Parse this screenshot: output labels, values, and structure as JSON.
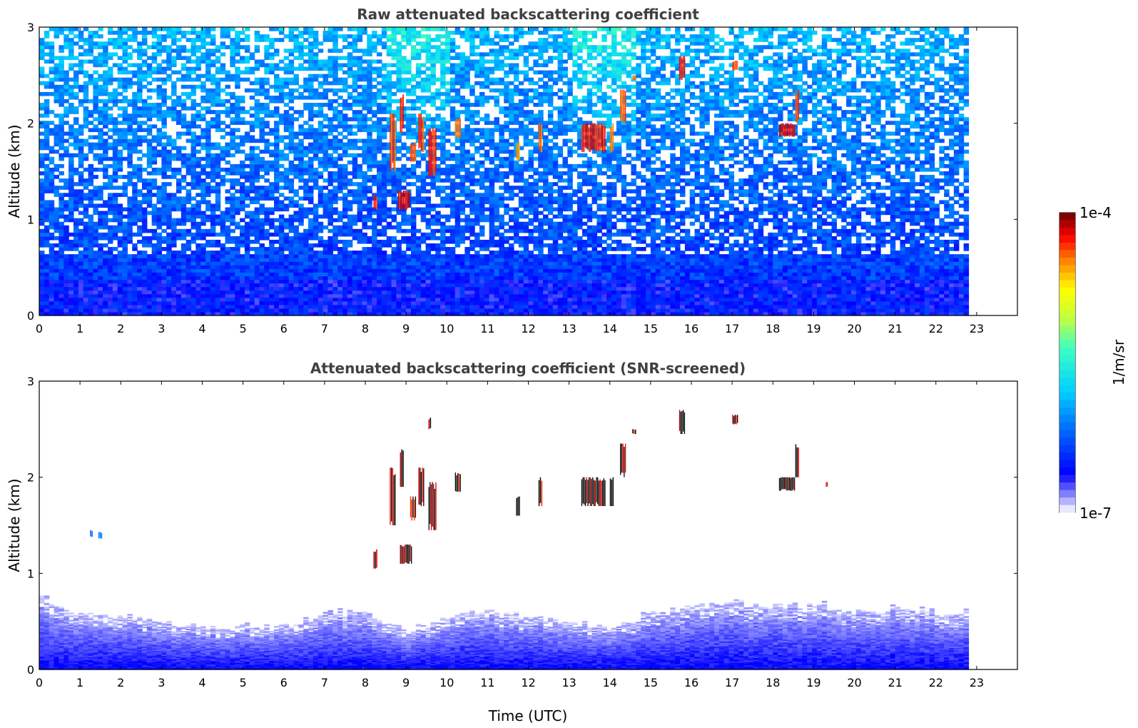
{
  "chart_data": [
    {
      "type": "heatmap",
      "title": "Raw attenuated backscattering coefficient",
      "xlabel": "",
      "ylabel": "Altitude (km)",
      "xlim": [
        0,
        24
      ],
      "ylim": [
        0,
        3
      ],
      "xticks": [
        "0",
        "1",
        "2",
        "3",
        "4",
        "5",
        "6",
        "7",
        "8",
        "9",
        "10",
        "11",
        "12",
        "13",
        "14",
        "15",
        "16",
        "17",
        "18",
        "19",
        "20",
        "21",
        "22",
        "23"
      ],
      "yticks": [
        "0",
        "1",
        "2",
        "3"
      ],
      "data_extent_x": [
        0,
        22.8
      ],
      "color_scale": "log",
      "background_layers": [
        {
          "alt_top": 0.35,
          "level": 0.18
        },
        {
          "alt_top": 0.9,
          "level": 0.24
        },
        {
          "alt_top": 1.6,
          "level": 0.28
        },
        {
          "alt_top": 3.0,
          "level": 0.34
        }
      ],
      "features": [
        {
          "t0": 8.2,
          "t1": 8.3,
          "alt0": 1.1,
          "alt1": 1.25,
          "level": 0.95
        },
        {
          "t0": 8.6,
          "t1": 8.75,
          "alt0": 1.5,
          "alt1": 2.1,
          "level": 0.92
        },
        {
          "t0": 8.8,
          "t1": 9.1,
          "alt0": 1.1,
          "alt1": 1.3,
          "level": 0.98
        },
        {
          "t0": 8.85,
          "t1": 8.95,
          "alt0": 1.9,
          "alt1": 2.3,
          "level": 0.95
        },
        {
          "t0": 9.1,
          "t1": 9.25,
          "alt0": 1.6,
          "alt1": 1.8,
          "level": 0.9
        },
        {
          "t0": 9.3,
          "t1": 9.45,
          "alt0": 1.7,
          "alt1": 2.1,
          "level": 0.93
        },
        {
          "t0": 9.55,
          "t1": 9.75,
          "alt0": 1.45,
          "alt1": 1.95,
          "level": 0.95
        },
        {
          "t0": 10.2,
          "t1": 10.35,
          "alt0": 1.85,
          "alt1": 2.05,
          "level": 0.9
        },
        {
          "t0": 11.7,
          "t1": 11.8,
          "alt0": 1.6,
          "alt1": 1.8,
          "level": 0.88
        },
        {
          "t0": 12.25,
          "t1": 12.35,
          "alt0": 1.7,
          "alt1": 2.0,
          "level": 0.9
        },
        {
          "t0": 13.3,
          "t1": 13.9,
          "alt0": 1.7,
          "alt1": 2.0,
          "level": 0.96
        },
        {
          "t0": 14.0,
          "t1": 14.1,
          "alt0": 1.7,
          "alt1": 2.0,
          "level": 0.92
        },
        {
          "t0": 14.25,
          "t1": 14.4,
          "alt0": 2.0,
          "alt1": 2.35,
          "level": 0.93
        },
        {
          "t0": 14.55,
          "t1": 14.65,
          "alt0": 2.45,
          "alt1": 2.5,
          "level": 0.9
        },
        {
          "t0": 15.7,
          "t1": 15.85,
          "alt0": 2.45,
          "alt1": 2.7,
          "level": 0.97
        },
        {
          "t0": 17.0,
          "t1": 17.15,
          "alt0": 2.55,
          "alt1": 2.65,
          "level": 0.93
        },
        {
          "t0": 18.15,
          "t1": 18.55,
          "alt0": 1.86,
          "alt1": 2.0,
          "level": 1.0
        },
        {
          "t0": 18.55,
          "t1": 18.65,
          "alt0": 2.0,
          "alt1": 2.35,
          "level": 0.93
        }
      ]
    },
    {
      "type": "heatmap",
      "title": "Attenuated backscattering coefficient (SNR-screened)",
      "xlabel": "Time (UTC)",
      "ylabel": "Altitude (km)",
      "xlim": [
        0,
        24
      ],
      "ylim": [
        0,
        3
      ],
      "xticks": [
        "0",
        "1",
        "2",
        "3",
        "4",
        "5",
        "6",
        "7",
        "8",
        "9",
        "10",
        "11",
        "12",
        "13",
        "14",
        "15",
        "16",
        "17",
        "18",
        "19",
        "20",
        "21",
        "22",
        "23"
      ],
      "yticks": [
        "0",
        "1",
        "2",
        "3"
      ],
      "data_extent_x": [
        0,
        22.8
      ],
      "color_scale": "log",
      "boundary_layer_top_km": [
        {
          "t": 0,
          "h": 0.75
        },
        {
          "t": 1,
          "h": 0.6
        },
        {
          "t": 2,
          "h": 0.55
        },
        {
          "t": 3,
          "h": 0.5
        },
        {
          "t": 4,
          "h": 0.45
        },
        {
          "t": 5,
          "h": 0.45
        },
        {
          "t": 6,
          "h": 0.45
        },
        {
          "t": 7,
          "h": 0.6
        },
        {
          "t": 8,
          "h": 0.6
        },
        {
          "t": 9,
          "h": 0.4
        },
        {
          "t": 10,
          "h": 0.55
        },
        {
          "t": 11,
          "h": 0.6
        },
        {
          "t": 12,
          "h": 0.55
        },
        {
          "t": 13,
          "h": 0.5
        },
        {
          "t": 14,
          "h": 0.45
        },
        {
          "t": 15,
          "h": 0.6
        },
        {
          "t": 16,
          "h": 0.65
        },
        {
          "t": 17,
          "h": 0.7
        },
        {
          "t": 18,
          "h": 0.65
        },
        {
          "t": 19,
          "h": 0.7
        },
        {
          "t": 20,
          "h": 0.6
        },
        {
          "t": 21,
          "h": 0.65
        },
        {
          "t": 22,
          "h": 0.6
        },
        {
          "t": 22.8,
          "h": 0.6
        }
      ],
      "features": [
        {
          "t0": 1.25,
          "t1": 1.32,
          "alt0": 1.38,
          "alt1": 1.45,
          "level": 0.3
        },
        {
          "t0": 1.45,
          "t1": 1.55,
          "alt0": 1.36,
          "alt1": 1.43,
          "level": 0.35
        },
        {
          "t0": 8.2,
          "t1": 8.3,
          "alt0": 1.05,
          "alt1": 1.25,
          "level": 0.95
        },
        {
          "t0": 8.6,
          "t1": 8.75,
          "alt0": 1.5,
          "alt1": 2.1,
          "level": 0.92
        },
        {
          "t0": 8.85,
          "t1": 9.15,
          "alt0": 1.1,
          "alt1": 1.3,
          "level": 0.98
        },
        {
          "t0": 8.85,
          "t1": 8.95,
          "alt0": 1.9,
          "alt1": 2.3,
          "level": 0.95
        },
        {
          "t0": 9.1,
          "t1": 9.25,
          "alt0": 1.55,
          "alt1": 1.8,
          "level": 0.9
        },
        {
          "t0": 9.3,
          "t1": 9.45,
          "alt0": 1.7,
          "alt1": 2.1,
          "level": 0.93
        },
        {
          "t0": 9.55,
          "t1": 9.75,
          "alt0": 1.45,
          "alt1": 1.95,
          "level": 0.95
        },
        {
          "t0": 9.55,
          "t1": 9.62,
          "alt0": 2.5,
          "alt1": 2.62,
          "level": 0.95
        },
        {
          "t0": 10.2,
          "t1": 10.35,
          "alt0": 1.85,
          "alt1": 2.05,
          "level": 0.9
        },
        {
          "t0": 11.7,
          "t1": 11.8,
          "alt0": 1.6,
          "alt1": 1.8,
          "level": 0.88
        },
        {
          "t0": 12.25,
          "t1": 12.35,
          "alt0": 1.7,
          "alt1": 2.0,
          "level": 0.9
        },
        {
          "t0": 13.3,
          "t1": 13.9,
          "alt0": 1.7,
          "alt1": 2.0,
          "level": 0.96
        },
        {
          "t0": 14.0,
          "t1": 14.1,
          "alt0": 1.7,
          "alt1": 2.0,
          "level": 0.92
        },
        {
          "t0": 14.25,
          "t1": 14.4,
          "alt0": 2.0,
          "alt1": 2.35,
          "level": 0.93
        },
        {
          "t0": 14.55,
          "t1": 14.65,
          "alt0": 2.45,
          "alt1": 2.5,
          "level": 0.9
        },
        {
          "t0": 15.7,
          "t1": 15.85,
          "alt0": 2.45,
          "alt1": 2.7,
          "level": 0.97
        },
        {
          "t0": 17.0,
          "t1": 17.15,
          "alt0": 2.55,
          "alt1": 2.65,
          "level": 0.93
        },
        {
          "t0": 18.15,
          "t1": 18.55,
          "alt0": 1.86,
          "alt1": 2.0,
          "level": 1.0
        },
        {
          "t0": 18.55,
          "t1": 18.65,
          "alt0": 2.0,
          "alt1": 2.35,
          "level": 0.93
        },
        {
          "t0": 19.3,
          "t1": 19.35,
          "alt0": 1.9,
          "alt1": 1.95,
          "level": 0.95
        }
      ]
    }
  ],
  "colorbar": {
    "label": "1/m/sr",
    "max_label": "1e-4",
    "min_label": "1e-7",
    "colormap": "jet"
  }
}
